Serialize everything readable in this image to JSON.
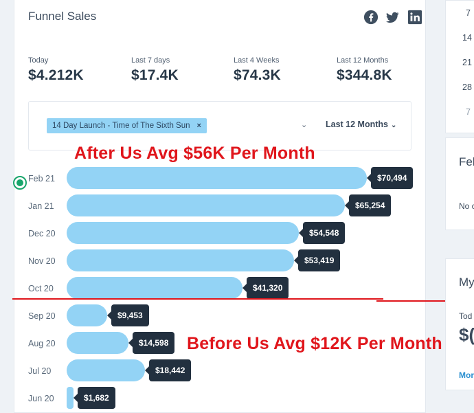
{
  "card": {
    "title": "Funnel Sales",
    "social": [
      "facebook-icon",
      "twitter-icon",
      "linkedin-icon"
    ]
  },
  "stats": [
    {
      "label": "Today",
      "value": "$4.212K"
    },
    {
      "label": "Last 7 days",
      "value": "$17.4K"
    },
    {
      "label": "Last 4 Weeks",
      "value": "$74.3K"
    },
    {
      "label": "Last 12 Months",
      "value": "$344.8K"
    }
  ],
  "filter": {
    "tag": "14 Day Launch - Time of The Sixth Sun",
    "tag_remove": "×",
    "period": "Last 12 Months"
  },
  "rows": [
    {
      "month": "Feb 21",
      "display": "$70,494",
      "value": 70494
    },
    {
      "month": "Jan 21",
      "display": "$65,254",
      "value": 65254
    },
    {
      "month": "Dec 20",
      "display": "$54,548",
      "value": 54548
    },
    {
      "month": "Nov 20",
      "display": "$53,419",
      "value": 53419
    },
    {
      "month": "Oct 20",
      "display": "$41,320",
      "value": 41320
    },
    {
      "month": "Sep 20",
      "display": "$9,453",
      "value": 9453
    },
    {
      "month": "Aug 20",
      "display": "$14,598",
      "value": 14598
    },
    {
      "month": "Jul 20",
      "display": "$18,442",
      "value": 18442
    },
    {
      "month": "Jun 20",
      "display": "$1,682",
      "value": 1682
    }
  ],
  "annotations": {
    "after": "After Us Avg $56K Per Month",
    "before": "Before Us Avg $12K Per Month"
  },
  "side": {
    "calendar": [
      "7",
      "14",
      "21",
      "28",
      "7"
    ],
    "card2_title": "Feb",
    "card2_text": "No c",
    "card3_title": "My",
    "card3_label": "Tod",
    "card3_value": "$(",
    "card3_link": "Mor"
  },
  "colors": {
    "bar": "#93d3f5",
    "tooltip": "#22303f",
    "annotation": "#e0161c",
    "radio": "#18a56b"
  }
}
